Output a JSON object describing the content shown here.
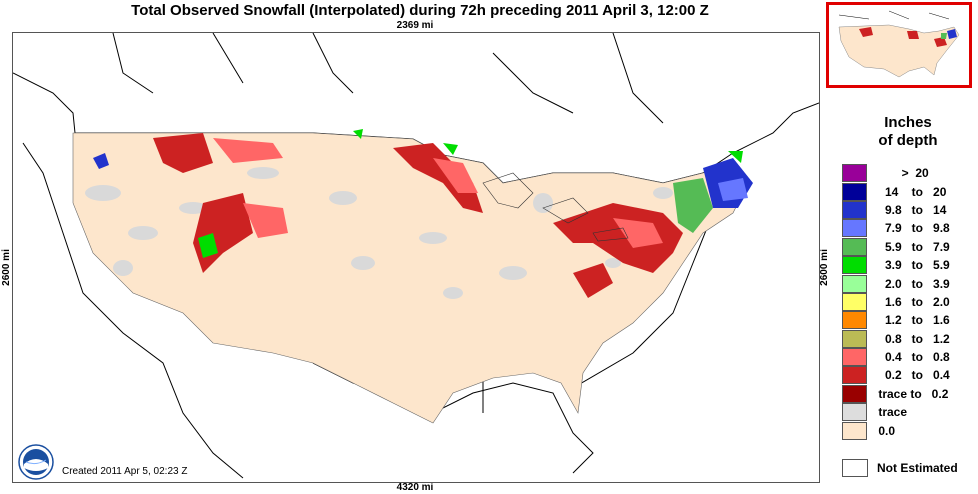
{
  "title": "Total Observed Snowfall (Interpolated) during 72h preceding 2011 April 3, 12:00 Z",
  "scale": {
    "top": "2369 mi",
    "bottom": "4320 mi",
    "left": "2600 mi",
    "right": "2600 mi"
  },
  "legend": {
    "title_line1": "Inches",
    "title_line2": "of depth",
    "items": [
      {
        "label": "        >  20",
        "color": "#990099"
      },
      {
        "label": "   14    to   20",
        "color": "#000099"
      },
      {
        "label": "   9.8   to   14",
        "color": "#2233cc"
      },
      {
        "label": "   7.9   to   9.8",
        "color": "#6677ff"
      },
      {
        "label": "   5.9   to   7.9",
        "color": "#55bb55"
      },
      {
        "label": "   3.9   to   5.9",
        "color": "#00dd00"
      },
      {
        "label": "   2.0   to   3.9",
        "color": "#99ff99"
      },
      {
        "label": "   1.6   to   2.0",
        "color": "#ffff66"
      },
      {
        "label": "   1.2   to   1.6",
        "color": "#ff8800"
      },
      {
        "label": "   0.8   to   1.2",
        "color": "#bbbb55"
      },
      {
        "label": "   0.4   to   0.8",
        "color": "#ff6666"
      },
      {
        "label": "   0.2   to   0.4",
        "color": "#cc2222"
      },
      {
        "label": " trace to   0.2",
        "color": "#990000"
      },
      {
        "label": " trace",
        "color": "#dddddd"
      },
      {
        "label": " 0.0",
        "color": "#fde6cc"
      }
    ],
    "not_estimated": "Not Estimated"
  },
  "created": "Created 2011 Apr 5, 02:23 Z",
  "colors": {
    "land_zero": "#fde6cc",
    "trace": "#d9d9d9",
    "inset_border": "#e00000"
  },
  "icons": {
    "logo": "noaa-logo"
  }
}
